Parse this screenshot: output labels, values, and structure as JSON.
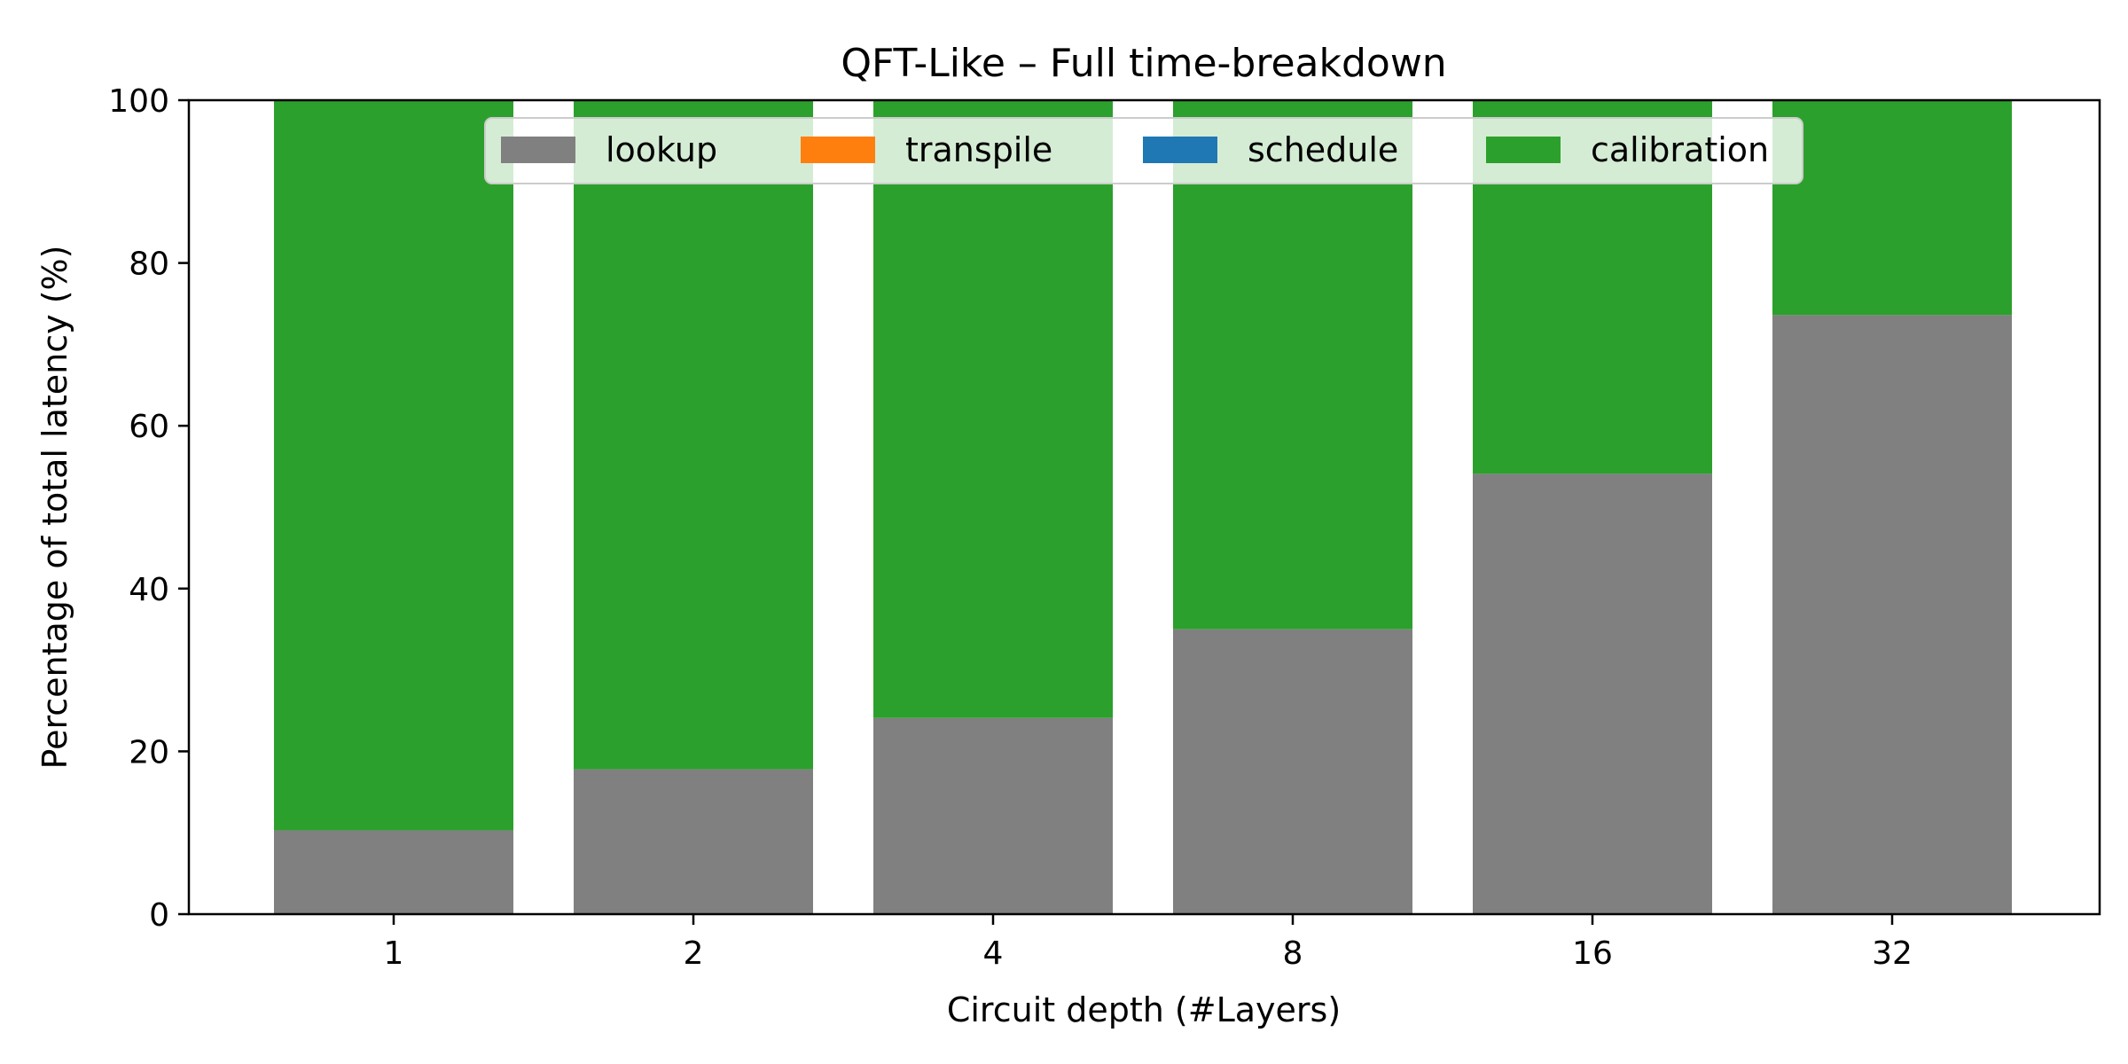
{
  "chart_data": {
    "type": "bar",
    "stacked": true,
    "title": "QFT-Like – Full time-breakdown",
    "xlabel": "Circuit depth (#Layers)",
    "ylabel": "Percentage of total latency (%)",
    "ylim": [
      0,
      100
    ],
    "yticks": [
      "0",
      "20",
      "40",
      "60",
      "80",
      "100"
    ],
    "categories": [
      "1",
      "2",
      "4",
      "8",
      "16",
      "32"
    ],
    "grid": false,
    "legend_position": "top-center",
    "series": [
      {
        "name": "lookup",
        "color": "#808080",
        "values": [
          10.3,
          17.8,
          24.1,
          35.0,
          54.1,
          73.6
        ]
      },
      {
        "name": "transpile",
        "color": "#ff7f0e",
        "values": [
          0,
          0,
          0,
          0,
          0,
          0
        ]
      },
      {
        "name": "schedule",
        "color": "#1f77b4",
        "values": [
          0,
          0,
          0,
          0,
          0,
          0
        ]
      },
      {
        "name": "calibration",
        "color": "#2ca02c",
        "values": [
          89.7,
          82.2,
          75.9,
          65.0,
          45.9,
          26.4
        ]
      }
    ]
  }
}
